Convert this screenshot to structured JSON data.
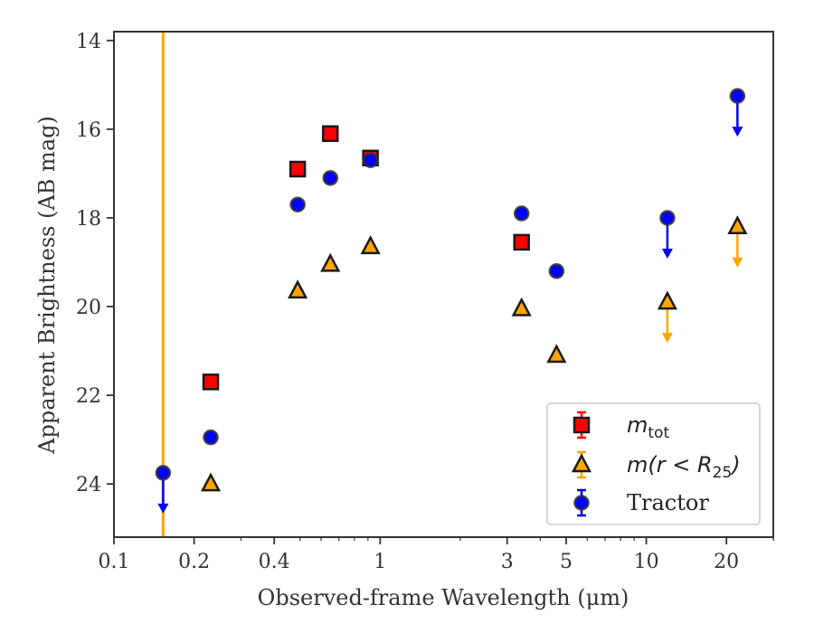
{
  "chart_data": {
    "type": "scatter",
    "xlabel": "Observed-frame Wavelength (μm)",
    "ylabel": "Apparent Brightness (AB mag)",
    "xscale": "log",
    "yaxis_inverted": true,
    "xlim": [
      0.1,
      30
    ],
    "ylim": [
      25.2,
      13.8
    ],
    "x_ticks": [
      0.1,
      0.2,
      0.4,
      1,
      3,
      5,
      10,
      20
    ],
    "x_tick_labels": [
      "0.1",
      "0.2",
      "0.4",
      "1",
      "3",
      "5",
      "10",
      "20"
    ],
    "y_ticks": [
      14,
      16,
      18,
      20,
      22,
      24
    ],
    "y_tick_labels": [
      "14",
      "16",
      "18",
      "20",
      "22",
      "24"
    ],
    "grid": false,
    "legend_position": "lower-right",
    "vertical_line": {
      "x": 0.153,
      "color": "#ffa500"
    },
    "series": [
      {
        "legend_math": "m",
        "legend_sub": "tot",
        "marker": "square",
        "color": "#ff0000",
        "points": [
          {
            "x": 0.231,
            "y": 21.7
          },
          {
            "x": 0.49,
            "y": 16.9
          },
          {
            "x": 0.65,
            "y": 16.1
          },
          {
            "x": 0.92,
            "y": 16.65
          },
          {
            "x": 3.4,
            "y": 18.55
          }
        ]
      },
      {
        "legend_math": "m(r < R",
        "legend_sub": "25",
        "legend_close": ")",
        "marker": "triangle",
        "color": "#ffa500",
        "points": [
          {
            "x": 0.231,
            "y": 24.0
          },
          {
            "x": 0.49,
            "y": 19.65
          },
          {
            "x": 0.65,
            "y": 19.05
          },
          {
            "x": 0.92,
            "y": 18.65
          },
          {
            "x": 3.4,
            "y": 20.05
          },
          {
            "x": 4.6,
            "y": 21.1
          },
          {
            "x": 12.0,
            "y": 19.9,
            "upper_limit": true
          },
          {
            "x": 22.0,
            "y": 18.2,
            "upper_limit": true
          }
        ]
      },
      {
        "name": "Tractor",
        "marker": "circle",
        "color": "#0000ff",
        "points": [
          {
            "x": 0.153,
            "y": 23.75,
            "upper_limit": true
          },
          {
            "x": 0.231,
            "y": 22.95
          },
          {
            "x": 0.49,
            "y": 17.7
          },
          {
            "x": 0.65,
            "y": 17.1
          },
          {
            "x": 0.92,
            "y": 16.7
          },
          {
            "x": 3.4,
            "y": 17.9
          },
          {
            "x": 4.6,
            "y": 19.2
          },
          {
            "x": 12.0,
            "y": 18.0,
            "upper_limit": true
          },
          {
            "x": 22.0,
            "y": 15.25,
            "upper_limit": true
          }
        ]
      }
    ]
  }
}
